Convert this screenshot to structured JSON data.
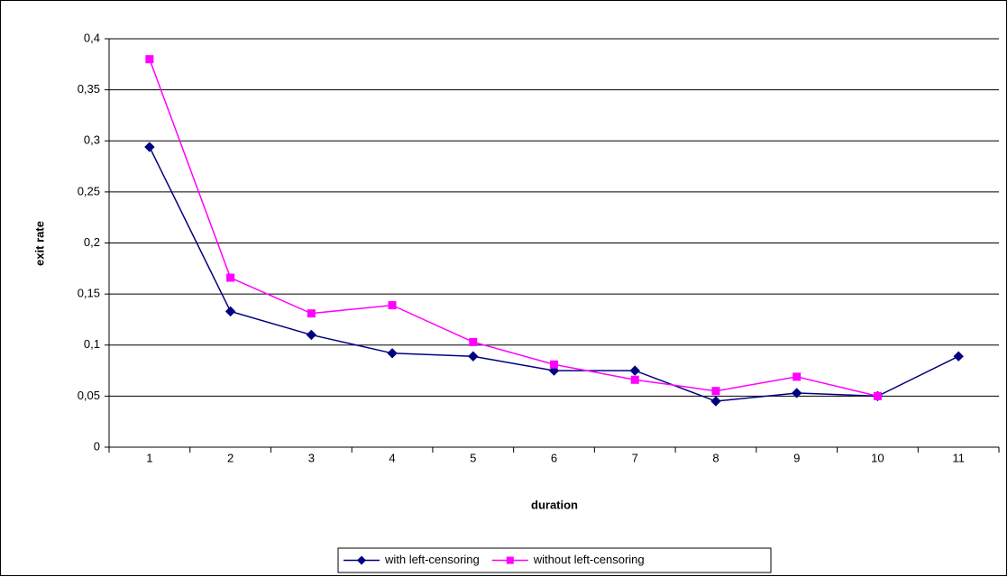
{
  "chart_data": {
    "type": "line",
    "x_label": "duration",
    "y_label": "exit rate",
    "categories": [
      "1",
      "2",
      "3",
      "4",
      "5",
      "6",
      "7",
      "8",
      "9",
      "10",
      "11"
    ],
    "series": [
      {
        "name": "with left-censoring",
        "color": "#000080",
        "marker": "diamond",
        "values": [
          0.294,
          0.133,
          0.11,
          0.092,
          0.089,
          0.075,
          0.075,
          0.045,
          0.053,
          0.05,
          0.089
        ]
      },
      {
        "name": "without left-censoring",
        "color": "#ff00ff",
        "marker": "square",
        "values": [
          0.38,
          0.166,
          0.131,
          0.139,
          0.103,
          0.081,
          0.066,
          0.055,
          0.069,
          0.05,
          null
        ]
      }
    ],
    "ylim": [
      0,
      0.4
    ],
    "yticks": [
      0,
      {
        "value": 0.05,
        "label": "0,05"
      },
      {
        "value": 0.1,
        "label": "0,1"
      },
      {
        "value": 0.15,
        "label": "0,15"
      },
      {
        "value": 0.2,
        "label": "0,2"
      },
      {
        "value": 0.25,
        "label": "0,25"
      },
      {
        "value": 0.3,
        "label": "0,3"
      },
      {
        "value": 0.35,
        "label": "0,35"
      },
      {
        "value": 0.4,
        "label": "0,4"
      }
    ],
    "grid": true,
    "legend": "bottom"
  }
}
